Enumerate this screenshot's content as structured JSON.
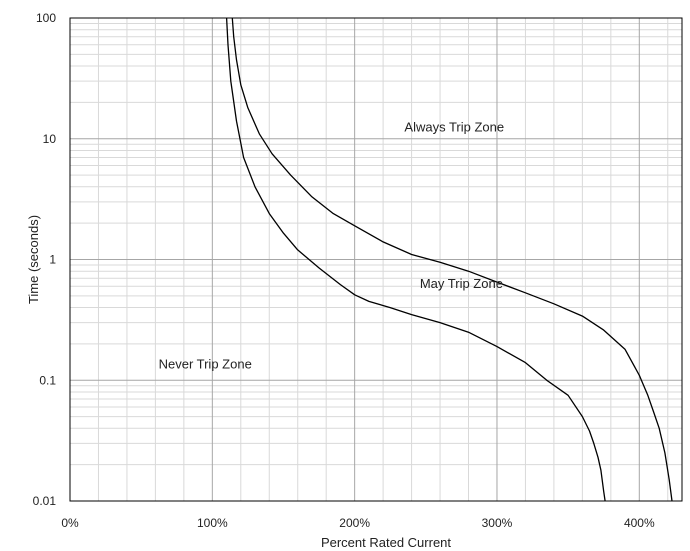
{
  "chart_data": {
    "type": "line",
    "title": "",
    "xlabel": "Percent Rated Current",
    "ylabel": "Time (seconds)",
    "x_scale": "linear",
    "y_scale": "log",
    "xlim": [
      0,
      430
    ],
    "ylim": [
      0.01,
      100
    ],
    "x_ticks": [
      {
        "value": 0,
        "label": "0%"
      },
      {
        "value": 100,
        "label": "100%"
      },
      {
        "value": 200,
        "label": "200%"
      },
      {
        "value": 300,
        "label": "300%"
      },
      {
        "value": 400,
        "label": "400%"
      }
    ],
    "y_ticks": [
      {
        "value": 100,
        "label": "100"
      },
      {
        "value": 10,
        "label": "10"
      },
      {
        "value": 1,
        "label": "1"
      },
      {
        "value": 0.1,
        "label": "0.1"
      },
      {
        "value": 0.01,
        "label": "0.01"
      }
    ],
    "grid": true,
    "legend": "none",
    "line_color": "#000000",
    "series": [
      {
        "x": [
          110,
          111,
          113,
          117,
          122,
          130,
          140,
          150,
          160,
          175,
          190,
          200,
          210,
          225,
          240,
          260,
          280,
          300,
          320,
          335,
          350,
          360,
          365,
          368,
          371,
          373,
          375,
          376
        ],
        "y": [
          100,
          60,
          30,
          14,
          7,
          4,
          2.4,
          1.65,
          1.2,
          0.85,
          0.62,
          0.51,
          0.45,
          0.4,
          0.35,
          0.3,
          0.25,
          0.19,
          0.14,
          0.1,
          0.075,
          0.05,
          0.038,
          0.03,
          0.023,
          0.018,
          0.012,
          0.01
        ]
      },
      {
        "x": [
          114,
          115,
          117,
          120,
          125,
          133,
          142,
          155,
          170,
          185,
          200,
          220,
          240,
          260,
          280,
          300,
          320,
          340,
          360,
          375,
          390,
          400,
          406,
          410,
          414,
          418,
          421,
          423
        ],
        "y": [
          100,
          70,
          45,
          28,
          18,
          11,
          7.5,
          5,
          3.3,
          2.4,
          1.9,
          1.4,
          1.1,
          0.95,
          0.8,
          0.65,
          0.53,
          0.43,
          0.34,
          0.26,
          0.18,
          0.11,
          0.075,
          0.055,
          0.04,
          0.025,
          0.015,
          0.01
        ]
      }
    ],
    "annotations": [
      {
        "text": "Always Trip Zone",
        "x": 270,
        "y": 11.5
      },
      {
        "text": "May Trip Zone",
        "x": 275,
        "y": 0.58
      },
      {
        "text": "Never Trip Zone",
        "x": 95,
        "y": 0.125
      }
    ]
  }
}
